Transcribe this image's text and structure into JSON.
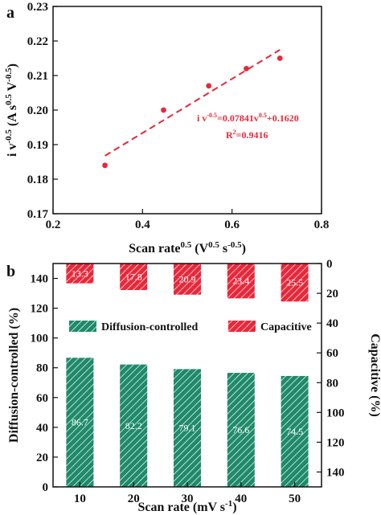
{
  "chart_data": [
    {
      "panel": "a",
      "type": "scatter",
      "xlabel": "Scan rate",
      "xlabel_sup": "0.5",
      "xlabel_unit_prefix": " (V",
      "xlabel_unit_sup1": "0.5",
      "xlabel_unit_mid": " s",
      "xlabel_unit_sup2": "-0.5",
      "xlabel_unit_suffix": ")",
      "ylabel": "i v",
      "ylabel_sup": "-0.5",
      "ylabel_unit_prefix": " (A s",
      "ylabel_unit_sup1": "0.5",
      "ylabel_unit_mid": " V",
      "ylabel_unit_sup2": "-0.5",
      "ylabel_unit_suffix": ")",
      "xlim": [
        0.2,
        0.8
      ],
      "ylim": [
        0.17,
        0.23
      ],
      "xticks": [
        "0.2",
        "0.4",
        "0.6",
        "0.8"
      ],
      "yticks": [
        "0.17",
        "0.18",
        "0.19",
        "0.20",
        "0.21",
        "0.22",
        "0.23"
      ],
      "points": [
        {
          "x": 0.316,
          "y": 0.184
        },
        {
          "x": 0.447,
          "y": 0.2
        },
        {
          "x": 0.548,
          "y": 0.207
        },
        {
          "x": 0.632,
          "y": 0.212
        },
        {
          "x": 0.707,
          "y": 0.215
        }
      ],
      "fit": {
        "slope": 0.07841,
        "intercept": 0.162,
        "x_range": [
          0.316,
          0.707
        ],
        "eq_a": "i v",
        "eq_a_sup": "-0.5",
        "eq_b": "=0.07841v",
        "eq_b_sup": "0.5",
        "eq_c": "+0.1620",
        "r2_a": "R",
        "r2_sup": "2",
        "r2_b": "=0.9416"
      },
      "color": "#e8283a"
    },
    {
      "panel": "b",
      "type": "bar",
      "xlabel": "Scan rate (mV s",
      "xlabel_sup": "-1",
      "xlabel_suffix": ")",
      "ylabel_left": "Diffusion-controlled (%)",
      "ylabel_right": "Capacitive (%)",
      "categories": [
        "10",
        "20",
        "30",
        "40",
        "50"
      ],
      "ylim_left": [
        0,
        150
      ],
      "yticks_left": [
        "0",
        "20",
        "40",
        "60",
        "80",
        "100",
        "120",
        "140"
      ],
      "ylim_right_inverted": [
        0,
        150
      ],
      "yticks_right": [
        "0",
        "20",
        "40",
        "60",
        "80",
        "100",
        "120",
        "140"
      ],
      "series": [
        {
          "name": "Diffusion-controlled",
          "axis": "left",
          "color": "#1f8a6a",
          "values": [
            86.7,
            82.2,
            79.1,
            76.6,
            74.5
          ],
          "labels": [
            "86.7",
            "82.2",
            "79.1",
            "76.6",
            "74.5"
          ]
        },
        {
          "name": "Capacitive",
          "axis": "right-inverted",
          "color": "#e8283a",
          "values": [
            13.3,
            17.8,
            20.9,
            23.4,
            25.5
          ],
          "labels": [
            "13.3",
            "17.8",
            "20.9",
            "23.4",
            "25.5"
          ]
        }
      ]
    }
  ]
}
